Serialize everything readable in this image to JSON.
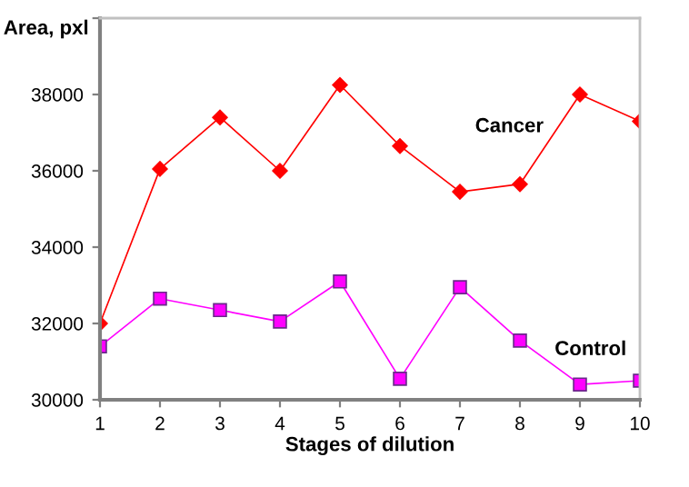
{
  "chart_data": {
    "type": "line",
    "xlabel": "Stages of dilution",
    "ylabel": "Area, pxl",
    "x": [
      1,
      2,
      3,
      4,
      5,
      6,
      7,
      8,
      9,
      10
    ],
    "xlim": [
      1,
      10
    ],
    "xticks": [
      1,
      2,
      3,
      4,
      5,
      6,
      7,
      8,
      9,
      10
    ],
    "ylim": [
      30000,
      40000
    ],
    "yticks": [
      30000,
      32000,
      34000,
      36000,
      38000,
      {
        "value": 40000,
        "label": null
      }
    ],
    "grid": false,
    "legend": false,
    "line_style": "solid",
    "series": [
      {
        "name": "Cancer",
        "color": "#ff0000",
        "marker": "diamond",
        "values": [
          32000,
          36050,
          37400,
          36000,
          38250,
          36650,
          35450,
          35650,
          38000,
          37300
        ]
      },
      {
        "name": "Control",
        "color": "#ff00ff",
        "marker": "square",
        "values": [
          31400,
          32650,
          32350,
          32050,
          33100,
          30550,
          32950,
          31550,
          30400,
          30500
        ]
      }
    ]
  }
}
